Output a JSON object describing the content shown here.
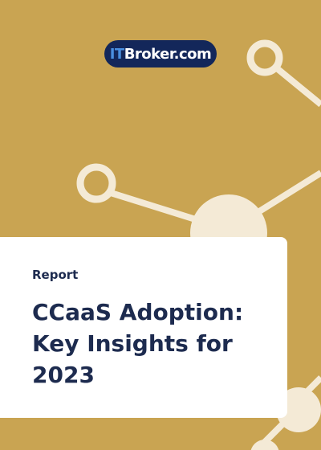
{
  "logo": {
    "prefix": "IT",
    "name": "Broker.com"
  },
  "label": "Report",
  "title_lines": [
    "CCaaS Adoption:",
    "Key Insights for",
    "2023"
  ]
}
